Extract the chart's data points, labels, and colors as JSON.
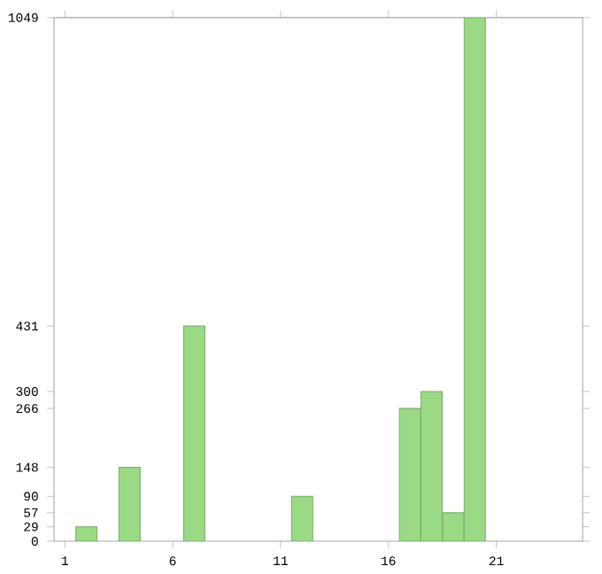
{
  "chart_data": {
    "type": "bar",
    "x": [
      2,
      4,
      7,
      12,
      17,
      18,
      19,
      20
    ],
    "values": [
      29,
      148,
      431,
      90,
      266,
      300,
      57,
      1049
    ],
    "color": "#9ada85",
    "xlim": [
      0.5,
      25
    ],
    "xticks": [
      1,
      6,
      11,
      16,
      21
    ],
    "ylim": [
      0,
      1049
    ],
    "yticks": [
      0,
      29,
      57,
      90,
      148,
      266,
      300,
      431,
      1049
    ],
    "grid": false
  }
}
